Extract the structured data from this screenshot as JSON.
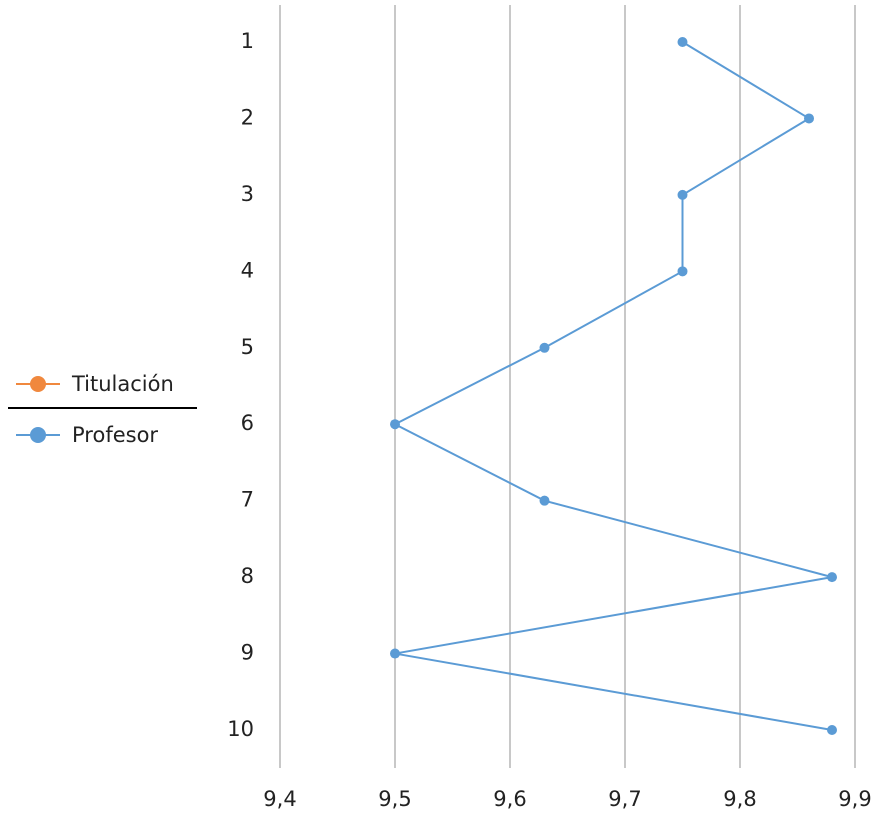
{
  "chart_data": {
    "type": "line",
    "orientation": "horizontal",
    "categories": [
      "1",
      "2",
      "3",
      "4",
      "5",
      "6",
      "7",
      "8",
      "9",
      "10"
    ],
    "series": [
      {
        "name": "Titulación",
        "color": "#f0883e",
        "values": [
          null,
          null,
          null,
          null,
          null,
          null,
          null,
          null,
          null,
          null
        ]
      },
      {
        "name": "Profesor",
        "color": "#5b9bd5",
        "values": [
          9.75,
          9.86,
          9.75,
          9.75,
          9.63,
          9.5,
          9.63,
          9.88,
          9.5,
          9.88
        ]
      }
    ],
    "xlim": [
      9.4,
      9.9
    ],
    "xticks": [
      {
        "value": 9.4,
        "label": "9,4"
      },
      {
        "value": 9.5,
        "label": "9,5"
      },
      {
        "value": 9.6,
        "label": "9,6"
      },
      {
        "value": 9.7,
        "label": "9,7"
      },
      {
        "value": 9.8,
        "label": "9,8"
      },
      {
        "value": 9.9,
        "label": "9,9"
      }
    ],
    "grid": true,
    "legend": "left"
  }
}
